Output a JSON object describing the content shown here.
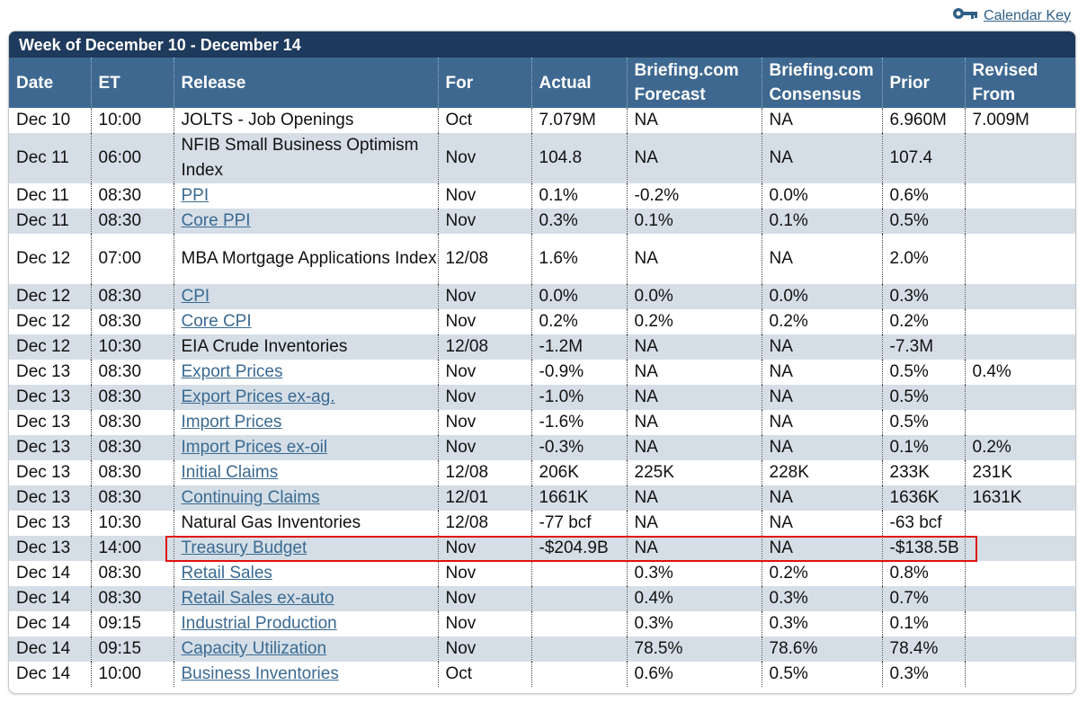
{
  "calendar_key": {
    "label": "Calendar Key",
    "icon": "key-icon"
  },
  "week_title": "Week of December 10 - December 14",
  "headers": {
    "date": "Date",
    "et": "ET",
    "release": "Release",
    "for": "For",
    "actual": "Actual",
    "forecast_1": "Briefing.com",
    "forecast_2": "Forecast",
    "consensus_1": "Briefing.com",
    "consensus_2": "Consensus",
    "prior": "Prior",
    "revised_1": "Revised",
    "revised_2": "From"
  },
  "rows": [
    {
      "date": "Dec 10",
      "et": "10:00",
      "release": "JOLTS - Job Openings",
      "link": false,
      "for": "Oct",
      "actual": "7.079M",
      "forecast": "NA",
      "consensus": "NA",
      "prior": "6.960M",
      "revised": "7.009M"
    },
    {
      "date": "Dec 11",
      "et": "06:00",
      "release": "NFIB Small Business Optimism Index",
      "link": false,
      "for": "Nov",
      "actual": "104.8",
      "forecast": "NA",
      "consensus": "NA",
      "prior": "107.4",
      "revised": ""
    },
    {
      "date": "Dec 11",
      "et": "08:30",
      "release": "PPI",
      "link": true,
      "for": "Nov",
      "actual": "0.1%",
      "forecast": "-0.2%",
      "consensus": "0.0%",
      "prior": "0.6%",
      "revised": ""
    },
    {
      "date": "Dec 11",
      "et": "08:30",
      "release": "Core PPI",
      "link": true,
      "for": "Nov",
      "actual": "0.3%",
      "forecast": "0.1%",
      "consensus": "0.1%",
      "prior": "0.5%",
      "revised": ""
    },
    {
      "date": "Dec 12",
      "et": "07:00",
      "release": "MBA Mortgage Applications Index",
      "link": false,
      "for": "12/08",
      "actual": "1.6%",
      "forecast": "NA",
      "consensus": "NA",
      "prior": "2.0%",
      "revised": ""
    },
    {
      "date": "Dec 12",
      "et": "08:30",
      "release": "CPI",
      "link": true,
      "for": "Nov",
      "actual": "0.0%",
      "forecast": "0.0%",
      "consensus": "0.0%",
      "prior": "0.3%",
      "revised": ""
    },
    {
      "date": "Dec 12",
      "et": "08:30",
      "release": "Core CPI",
      "link": true,
      "for": "Nov",
      "actual": "0.2%",
      "forecast": "0.2%",
      "consensus": "0.2%",
      "prior": "0.2%",
      "revised": ""
    },
    {
      "date": "Dec 12",
      "et": "10:30",
      "release": "EIA Crude Inventories",
      "link": false,
      "for": "12/08",
      "actual": "-1.2M",
      "forecast": "NA",
      "consensus": "NA",
      "prior": "-7.3M",
      "revised": ""
    },
    {
      "date": "Dec 13",
      "et": "08:30",
      "release": "Export Prices",
      "link": true,
      "for": "Nov",
      "actual": "-0.9%",
      "forecast": "NA",
      "consensus": "NA",
      "prior": "0.5%",
      "revised": "0.4%"
    },
    {
      "date": "Dec 13",
      "et": "08:30",
      "release": "Export Prices ex-ag.",
      "link": true,
      "for": "Nov",
      "actual": "-1.0%",
      "forecast": "NA",
      "consensus": "NA",
      "prior": "0.5%",
      "revised": ""
    },
    {
      "date": "Dec 13",
      "et": "08:30",
      "release": "Import Prices",
      "link": true,
      "for": "Nov",
      "actual": "-1.6%",
      "forecast": "NA",
      "consensus": "NA",
      "prior": "0.5%",
      "revised": ""
    },
    {
      "date": "Dec 13",
      "et": "08:30",
      "release": "Import Prices ex-oil",
      "link": true,
      "for": "Nov",
      "actual": "-0.3%",
      "forecast": "NA",
      "consensus": "NA",
      "prior": "0.1%",
      "revised": "0.2%"
    },
    {
      "date": "Dec 13",
      "et": "08:30",
      "release": "Initial Claims",
      "link": true,
      "for": "12/08",
      "actual": "206K",
      "forecast": "225K",
      "consensus": "228K",
      "prior": "233K",
      "revised": "231K"
    },
    {
      "date": "Dec 13",
      "et": "08:30",
      "release": "Continuing Claims",
      "link": true,
      "for": "12/01",
      "actual": "1661K",
      "forecast": "NA",
      "consensus": "NA",
      "prior": "1636K",
      "revised": "1631K"
    },
    {
      "date": "Dec 13",
      "et": "10:30",
      "release": "Natural Gas Inventories",
      "link": false,
      "for": "12/08",
      "actual": "-77 bcf",
      "forecast": "NA",
      "consensus": "NA",
      "prior": "-63 bcf",
      "revised": ""
    },
    {
      "date": "Dec 13",
      "et": "14:00",
      "release": "Treasury Budget",
      "link": true,
      "for": "Nov",
      "actual": "-$204.9B",
      "forecast": "NA",
      "consensus": "NA",
      "prior": "-$138.5B",
      "revised": ""
    },
    {
      "date": "Dec 14",
      "et": "08:30",
      "release": "Retail Sales",
      "link": true,
      "for": "Nov",
      "actual": "",
      "forecast": "0.3%",
      "consensus": "0.2%",
      "prior": "0.8%",
      "revised": ""
    },
    {
      "date": "Dec 14",
      "et": "08:30",
      "release": "Retail Sales ex-auto",
      "link": true,
      "for": "Nov",
      "actual": "",
      "forecast": "0.4%",
      "consensus": "0.3%",
      "prior": "0.7%",
      "revised": ""
    },
    {
      "date": "Dec 14",
      "et": "09:15",
      "release": "Industrial Production",
      "link": true,
      "for": "Nov",
      "actual": "",
      "forecast": "0.3%",
      "consensus": "0.3%",
      "prior": "0.1%",
      "revised": ""
    },
    {
      "date": "Dec 14",
      "et": "09:15",
      "release": "Capacity Utilization",
      "link": true,
      "for": "Nov",
      "actual": "",
      "forecast": "78.5%",
      "consensus": "78.6%",
      "prior": "78.4%",
      "revised": ""
    },
    {
      "date": "Dec 14",
      "et": "10:00",
      "release": "Business Inventories",
      "link": true,
      "for": "Oct",
      "actual": "",
      "forecast": "0.6%",
      "consensus": "0.5%",
      "prior": "0.3%",
      "revised": ""
    }
  ],
  "colors": {
    "title_bar": "#1e3a5c",
    "header_bg": "#3e6890",
    "alt_row": "#d5dee6",
    "link": "#3a6a92",
    "highlight": "#e01010"
  }
}
